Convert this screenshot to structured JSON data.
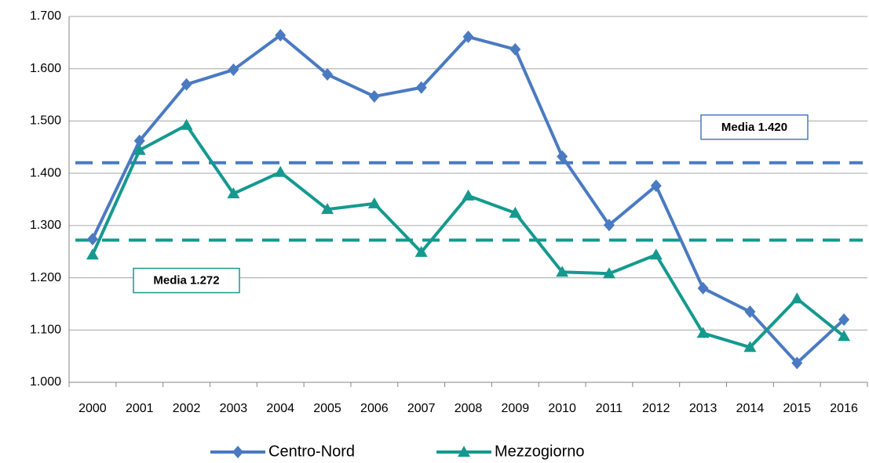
{
  "chart_data": {
    "type": "line",
    "categories": [
      "2000",
      "2001",
      "2002",
      "2003",
      "2004",
      "2005",
      "2006",
      "2007",
      "2008",
      "2009",
      "2010",
      "2011",
      "2012",
      "2013",
      "2014",
      "2015",
      "2016"
    ],
    "series": [
      {
        "name": "Centro-Nord",
        "color": "#4a7ac2",
        "marker": "diamond",
        "values": [
          1274,
          1462,
          1570,
          1598,
          1664,
          1589,
          1547,
          1564,
          1661,
          1637,
          1432,
          1301,
          1376,
          1180,
          1135,
          1037,
          1120
        ]
      },
      {
        "name": "Mezzogiorno",
        "color": "#15998f",
        "marker": "triangle",
        "values": [
          1244,
          1444,
          1492,
          1361,
          1402,
          1331,
          1342,
          1249,
          1357,
          1324,
          1211,
          1208,
          1244,
          1094,
          1067,
          1160,
          1088
        ]
      }
    ],
    "ylim": [
      1000,
      1700
    ],
    "yticks": [
      {
        "value": 1000,
        "label": "1.000"
      },
      {
        "value": 1100,
        "label": "1.100"
      },
      {
        "value": 1200,
        "label": "1.200"
      },
      {
        "value": 1300,
        "label": "1.300"
      },
      {
        "value": 1400,
        "label": "1.400"
      },
      {
        "value": 1500,
        "label": "1.500"
      },
      {
        "value": 1600,
        "label": "1.600"
      },
      {
        "value": 1700,
        "label": "1.700"
      }
    ],
    "grid": true,
    "legend": "bottom",
    "annotations": [
      {
        "label": "Media 1.420",
        "value": 1420,
        "color": "#4a7ac2"
      },
      {
        "label": "Media 1.272",
        "value": 1272,
        "color": "#15998f"
      }
    ]
  }
}
